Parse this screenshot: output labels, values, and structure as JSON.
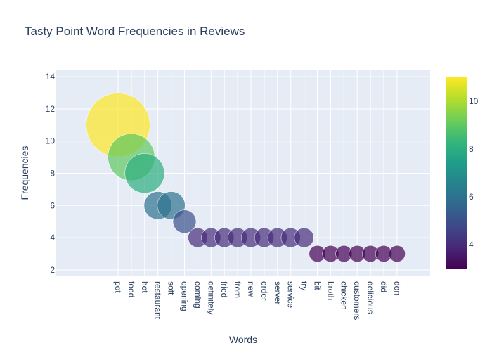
{
  "chart_data": {
    "type": "scatter",
    "title": "Tasty Point Word Frequencies in Reviews",
    "xlabel": "Words",
    "ylabel": "Frequencies",
    "ylim": [
      1.6,
      14.4
    ],
    "yticks": [
      2,
      4,
      6,
      8,
      10,
      12,
      14
    ],
    "categories": [
      "pot",
      "food",
      "hot",
      "restaurant",
      "soft",
      "opening",
      "coming",
      "definitely",
      "fried",
      "from",
      "new",
      "order",
      "server",
      "service",
      "try",
      "bit",
      "broth",
      "chicken",
      "customers",
      "delicious",
      "did",
      "don"
    ],
    "values": [
      11,
      9,
      8,
      6,
      6,
      5,
      4,
      4,
      4,
      4,
      4,
      4,
      4,
      4,
      4,
      3,
      3,
      3,
      3,
      3,
      3,
      3
    ],
    "marker_size_encodes": "frequency",
    "colorscale": "Viridis",
    "color_range": [
      3,
      11
    ],
    "colorbar_ticks": [
      4,
      6,
      8,
      10
    ],
    "grid": true,
    "plot_background": "#e5ecf6"
  }
}
